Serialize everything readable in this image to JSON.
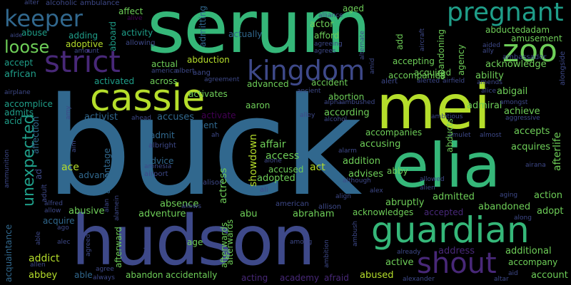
{
  "words": {
    "buck": "buck",
    "serum": "serum",
    "hudson": "hudson",
    "mei": "mei",
    "elia": "elia",
    "cassie": "cassie",
    "guardian": "guardian",
    "shout": "shout",
    "kingdom": "kingdom",
    "strict": "strict",
    "keeper": "keeper",
    "pregnant": "pregnant",
    "zoo": "zoo",
    "unexpected": "unexpected",
    "loose": "loose",
    "african": "african",
    "accept": "accept",
    "abuse": "abuse",
    "adding": "adding",
    "adoptive": "adoptive",
    "activity": "activity",
    "aboard": "aboard",
    "affect": "affect",
    "aged": "aged",
    "actor": "actor",
    "afford": "afford",
    "abducted": "abducted",
    "adam": "adam",
    "amusement": "amusement",
    "acknowledge": "acknowledge",
    "ability": "ability",
    "abigail": "abigail",
    "achieve": "achieve",
    "accepts": "accepts",
    "acquires": "acquires",
    "afterlife": "afterlife",
    "admiral": "admiral",
    "accomplice": "accomplice",
    "admits": "admits",
    "acid": "acid",
    "activated": "activated",
    "across": "across",
    "activates": "activates",
    "activate": "activate",
    "aaron": "aaron",
    "according": "according",
    "accusing": "accusing",
    "affair": "affair",
    "access": "access",
    "accused": "accused",
    "adopted": "adopted",
    "addition": "addition",
    "advises": "advises",
    "advance": "advance",
    "advantage": "advantage",
    "advice": "advice",
    "admit": "admit",
    "activist": "activist",
    "accuses": "accuses",
    "agent": "agent",
    "ace": "ace",
    "actress": "actress",
    "showdown": "showdown",
    "act": "act",
    "abby": "abby",
    "abruptly": "abruptly",
    "admitted": "admitted",
    "accepted": "accepted",
    "abandoned": "abandoned",
    "action": "action",
    "adopt": "adopt",
    "abusive": "abusive",
    "adventure": "adventure",
    "absence": "absence",
    "abu": "abu",
    "abraham": "abraham",
    "acknowledges": "acknowledges",
    "acquire": "acquire",
    "afterward": "afterward",
    "age": "age",
    "afterwards": "afterwards",
    "address": "address",
    "additional": "additional",
    "accompany": "accompany",
    "account": "account",
    "acquaintance": "acquaintance",
    "addict": "addict",
    "abbey": "abbey",
    "able": "able",
    "abandon": "abandon",
    "accidentally": "accidentally",
    "acting": "acting",
    "academy": "academy",
    "afraid": "afraid",
    "abused": "abused",
    "active": "active",
    "abduction": "abduction",
    "actual": "actual",
    "aang": "aang",
    "actually": "actually",
    "advanced": "advanced",
    "accident": "accident",
    "abortion": "abortion",
    "accepting": "accepting",
    "acquired": "acquired",
    "abandoning": "abandoning",
    "accompanied": "accompanied",
    "accompanies": "accompanies",
    "abducts": "abducts",
    "admitting": "admitting",
    "agency": "agency",
    "add": "add",
    "affection": "affection",
    "alcoholic": "alcoholic",
    "ambulance": "ambulance",
    "alter": "alter",
    "alive": "alive",
    "aide": "aide",
    "amount": "amount",
    "allowing": "allowing",
    "alliance": "alliance",
    "agreeing": "agreeing",
    "agrees": "agrees",
    "alternate": "alternate",
    "airplane": "airplane",
    "america": "america",
    "albert": "albert",
    "agreement": "agreement",
    "ancient": "ancient",
    "alert": "alert",
    "alerted": "alerted",
    "airfield": "airfield",
    "amends": "amends",
    "aided": "aided",
    "ambassador": "ambassador",
    "alice": "alice",
    "amongst": "amongst",
    "aggressive": "aggressive",
    "ambitious": "ambitious",
    "ahead": "ahead",
    "alcohol": "alcohol",
    "alpha": "alpha",
    "ambushed": "ambushed",
    "amulet": "amulet",
    "almost": "almost",
    "albright": "albright",
    "airport": "airport",
    "alison": "alison",
    "alone": "alone",
    "alley": "alley",
    "ali": "ali",
    "allowed": "allowed",
    "alien": "alien",
    "although": "although",
    "alex": "alex",
    "alarm": "alarm",
    "air": "air",
    "ana": "ana",
    "aging": "aging",
    "along": "along",
    "align": "align",
    "alfred": "alfred",
    "allow": "allow",
    "allows": "allows",
    "american": "american",
    "allison": "allison",
    "alamein": "alamein",
    "alan": "alan",
    "adult": "adult",
    "ago": "ago",
    "alec": "alec",
    "allen": "allen",
    "agree": "agree",
    "always": "always",
    "agreed": "agreed",
    "anderson": "anderson",
    "among": "among",
    "amnesia": "amnesia",
    "aim": "aim",
    "amy": "amy",
    "ammunition": "ammunition",
    "ambition": "ambition",
    "ambush": "ambush",
    "alexander": "alexander",
    "altar": "altar",
    "already": "already",
    "aid": "aid",
    "alongside": "alongside",
    "ally": "ally",
    "amid": "amid",
    "ah": "ah",
    "ad": "ad",
    "aircraft": "aircraft",
    "afterwards2": "afterwards",
    "agents": "agent",
    "aggressive2": "aggressive"
  },
  "colors": {
    "background": "#000000",
    "green": "#35b779",
    "teal": "#1f9e89",
    "blue": "#31688e",
    "indigo": "#3e4989",
    "purple": "#482878",
    "deep": "#440154",
    "lime": "#b5de2b",
    "mint": "#6ece58"
  }
}
